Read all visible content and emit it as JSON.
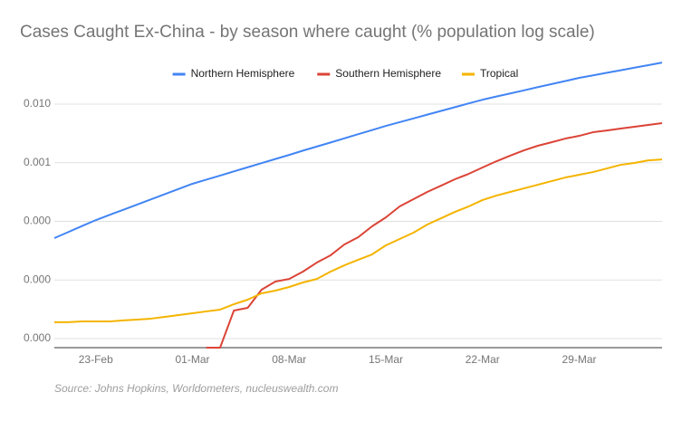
{
  "chart_data": {
    "type": "line",
    "title": "Cases Caught Ex-China - by season where caught (% population log scale)",
    "source": "Source: Johns Hopkins, Worldometers, nucleuswealth.com",
    "log_scale": true,
    "grid": true,
    "legend": "top",
    "categories": [
      null,
      null,
      null,
      "23-Feb",
      null,
      null,
      null,
      null,
      null,
      null,
      "01-Mar",
      null,
      null,
      null,
      null,
      null,
      null,
      "08-Mar",
      null,
      null,
      null,
      null,
      null,
      null,
      "15-Mar",
      null,
      null,
      null,
      null,
      null,
      null,
      "22-Mar",
      null,
      null,
      null,
      null,
      null,
      null,
      "29-Mar",
      null,
      null,
      null,
      null,
      null,
      null
    ],
    "ylim": [
      7e-07,
      0.066
    ],
    "yticks": [
      {
        "value": 1e-06,
        "label": "0.000"
      },
      {
        "value": 1e-05,
        "label": "0.000"
      },
      {
        "value": 0.0001,
        "label": "0.000"
      },
      {
        "value": 0.001,
        "label": "0.001"
      },
      {
        "value": 0.01,
        "label": "0.010"
      }
    ],
    "series": [
      {
        "name": "Northern Hemisphere",
        "color": "#4285f4",
        "values": [
          5.18e-05,
          6.56e-05,
          8.32e-05,
          0.000105,
          0.000129,
          0.000158,
          0.000194,
          0.000238,
          0.000292,
          0.000357,
          0.000438,
          0.000515,
          0.000605,
          0.000713,
          0.000838,
          0.000986,
          0.00116,
          0.00136,
          0.00161,
          0.00189,
          0.00222,
          0.00261,
          0.00308,
          0.00361,
          0.00426,
          0.00493,
          0.00571,
          0.00662,
          0.00767,
          0.00889,
          0.0103,
          0.0119,
          0.0135,
          0.0152,
          0.0172,
          0.0195,
          0.022,
          0.0248,
          0.0281,
          0.031,
          0.0343,
          0.0379,
          0.042,
          0.0463,
          0.0513
        ]
      },
      {
        "name": "Southern Hemisphere",
        "color": "#db4437",
        "values": [
          null,
          null,
          null,
          null,
          null,
          null,
          null,
          null,
          null,
          null,
          null,
          7e-07,
          7e-07,
          3.01e-06,
          3.35e-06,
          6.82e-06,
          9.4e-06,
          1.04e-05,
          1.39e-05,
          1.98e-05,
          2.64e-05,
          4.04e-05,
          5.37e-05,
          8.22e-05,
          0.000117,
          0.00018,
          0.000239,
          0.000318,
          0.000407,
          0.000523,
          0.000647,
          0.00083,
          0.00106,
          0.00132,
          0.00163,
          0.00195,
          0.00224,
          0.00259,
          0.00288,
          0.00332,
          0.00356,
          0.00383,
          0.00411,
          0.00442,
          0.00474
        ]
      },
      {
        "name": "Tropical",
        "color": "#f4b400",
        "values": [
          1.9e-06,
          1.9e-06,
          1.96e-06,
          1.96e-06,
          1.96e-06,
          2.04e-06,
          2.11e-06,
          2.19e-06,
          2.35e-06,
          2.52e-06,
          2.71e-06,
          2.91e-06,
          3.12e-06,
          3.86e-06,
          4.61e-06,
          5.92e-06,
          6.59e-06,
          7.59e-06,
          9.07e-06,
          1.04e-05,
          1.39e-05,
          1.78e-05,
          2.21e-05,
          2.73e-05,
          3.9e-05,
          5e-05,
          6.41e-05,
          8.83e-05,
          0.000113,
          0.000145,
          0.00018,
          0.000231,
          0.000275,
          0.000318,
          0.000366,
          0.000422,
          0.000486,
          0.000561,
          0.000624,
          0.000694,
          0.0008,
          0.000922,
          0.000991,
          0.0011,
          0.00114
        ]
      }
    ]
  }
}
